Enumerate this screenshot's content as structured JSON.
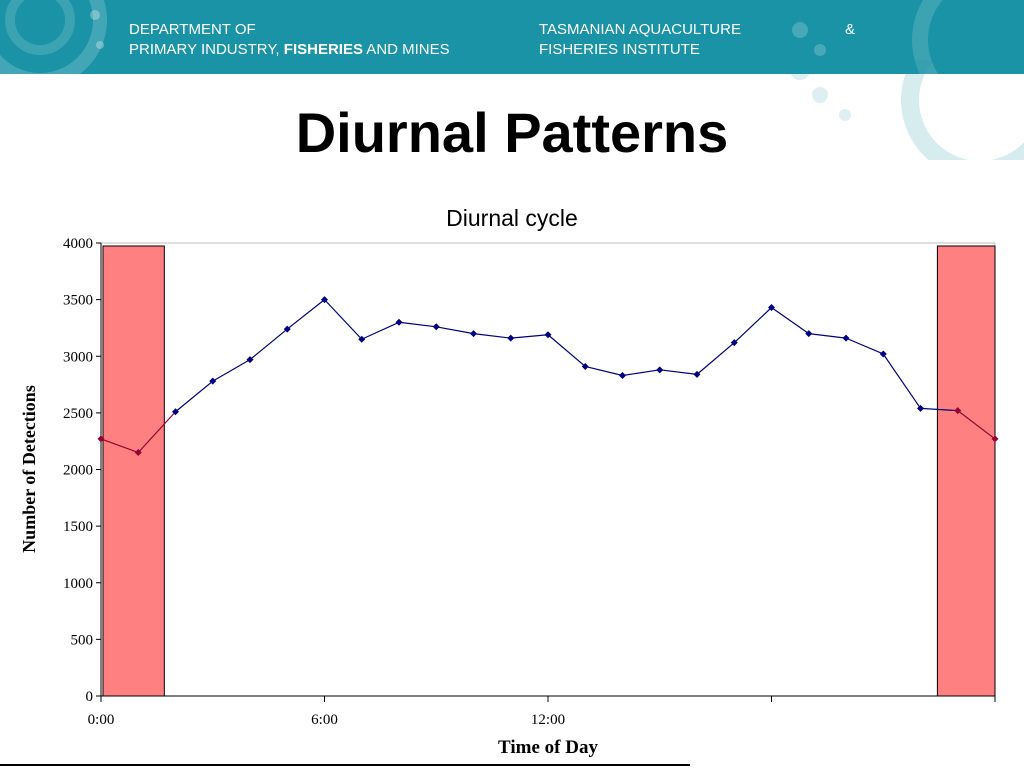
{
  "header": {
    "dept_line1": "DEPARTMENT OF",
    "dept_line2_prefix": "PRIMARY INDUSTRY, ",
    "dept_line2_bold": "FISHERIES",
    "dept_line2_suffix": " AND MINES",
    "inst_line1": "TASMANIAN AQUACULTURE",
    "inst_amp": "&",
    "inst_line2": "FISHERIES INSTITUTE",
    "banner_color": "#1a93a6"
  },
  "slide_title": "Diurnal Patterns",
  "chart_data": {
    "type": "line",
    "title": "Diurnal cycle",
    "xlabel": "Time of Day",
    "ylabel": "Number of Detections",
    "ylim": [
      0,
      4000
    ],
    "xlim": [
      0,
      24
    ],
    "yticks": [
      0,
      500,
      1000,
      1500,
      2000,
      2500,
      3000,
      3500,
      4000
    ],
    "xticks": [
      {
        "value": 0,
        "label": "0:00"
      },
      {
        "value": 6,
        "label": "6:00"
      },
      {
        "value": 12,
        "label": "12:00"
      },
      {
        "value": 18,
        "label": ""
      },
      {
        "value": 24,
        "label": ""
      }
    ],
    "night_bands": [
      [
        0,
        1.7
      ],
      [
        22.4,
        24
      ]
    ],
    "band_color": "#ff8080",
    "line_color_day": "#000080",
    "line_color_night": "#990033",
    "x": [
      0,
      1,
      2,
      3,
      4,
      5,
      6,
      7,
      8,
      9,
      10,
      11,
      12,
      13,
      14,
      15,
      16,
      17,
      18,
      19,
      20,
      21,
      22,
      23,
      24
    ],
    "values": [
      2270,
      2150,
      2510,
      2780,
      2970,
      3240,
      3500,
      3150,
      3300,
      3260,
      3200,
      3160,
      3190,
      2910,
      2830,
      2880,
      2840,
      3120,
      3430,
      3200,
      3160,
      3020,
      2540,
      2520,
      2270
    ],
    "grid": false,
    "legend": "none"
  }
}
